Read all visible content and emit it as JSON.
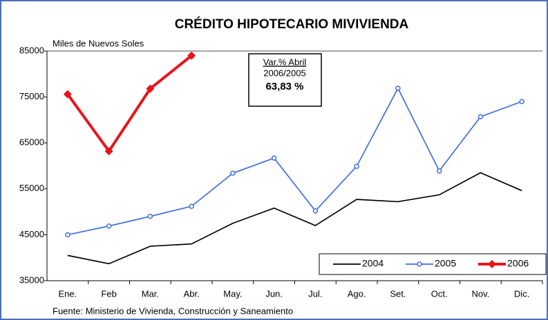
{
  "chart_data": {
    "type": "line",
    "title": "CRÉDITO HIPOTECARIO MIVIVIENDA",
    "y_label": "Miles de Nuevos Soles",
    "source": "Fuente: Ministerio de Vivienda, Construcción y Saneamiento",
    "annotation": [
      "Var.% Abril",
      "2006/2005",
      "63,83 %"
    ],
    "categories": [
      "Ene.",
      "Feb",
      "Mar.",
      "Abr.",
      "May.",
      "Jun.",
      "Jul.",
      "Ago.",
      "Set.",
      "Oct.",
      "Nov.",
      "Dic."
    ],
    "series": [
      {
        "name": "2004",
        "color": "#000000",
        "marker": "none",
        "values": [
          40500,
          38700,
          42500,
          43000,
          47500,
          50800,
          47000,
          52700,
          52200,
          53700,
          58500,
          54600
        ]
      },
      {
        "name": "2005",
        "color": "#3f6fe0",
        "marker": "circle",
        "values": [
          45000,
          46900,
          49000,
          51200,
          58400,
          61700,
          50200,
          59900,
          76900,
          58900,
          70700,
          74000
        ]
      },
      {
        "name": "2006",
        "color": "#e8141b",
        "marker": "diamond",
        "values": [
          75600,
          63200,
          76800,
          84000,
          null,
          null,
          null,
          null,
          null,
          null,
          null,
          null
        ]
      }
    ],
    "ylim": [
      35000,
      85000
    ],
    "yticks": [
      35000,
      45000,
      55000,
      65000,
      75000,
      85000
    ],
    "legend": "bottom-right"
  }
}
